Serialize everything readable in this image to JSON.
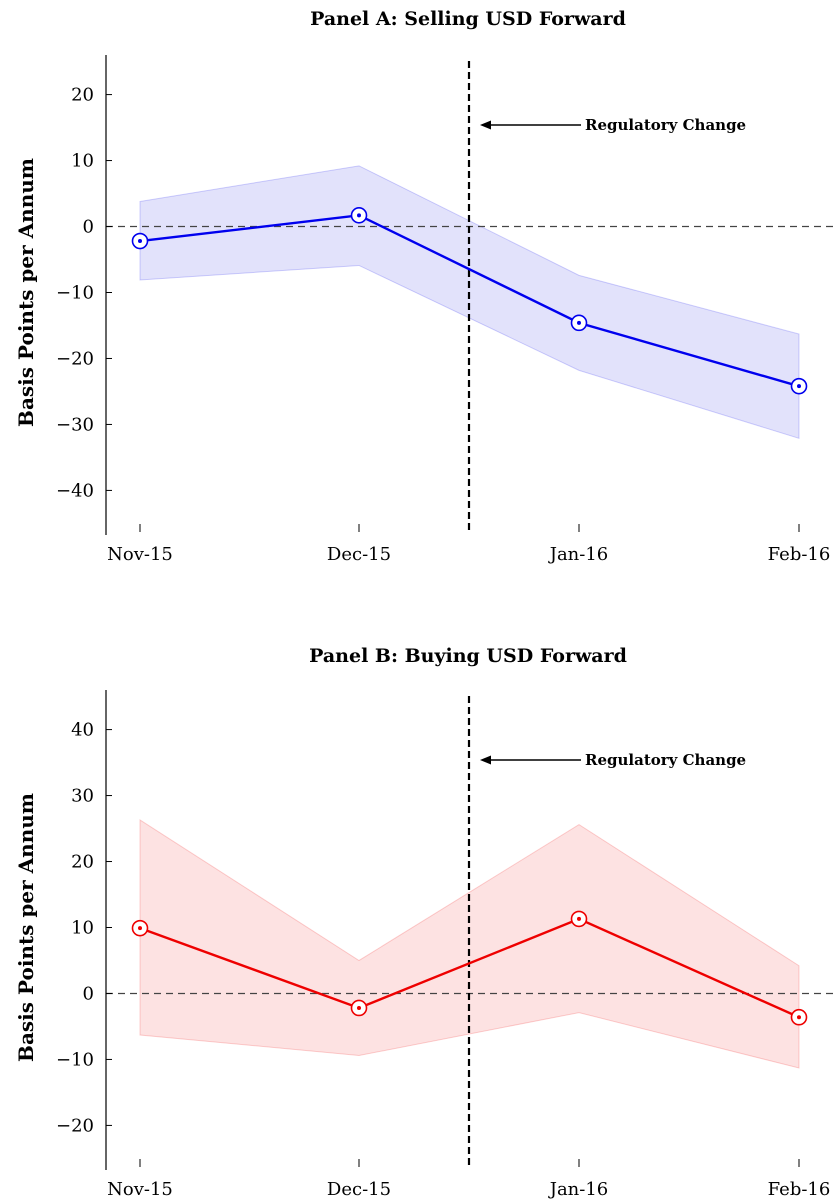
{
  "chart_data": [
    {
      "type": "line",
      "title": "Panel A: Selling USD Forward",
      "ylabel": "Basis Points per Annum",
      "xlabel": "",
      "categories": [
        "Nov-15",
        "Dec-15",
        "Jan-16",
        "Feb-16"
      ],
      "series": [
        {
          "values": [
            -2.2,
            1.7,
            -14.6,
            -24.2
          ],
          "ci_upper": [
            3.8,
            9.2,
            -7.4,
            -16.3
          ],
          "ci_lower": [
            -8.1,
            -5.9,
            -21.8,
            -32.1
          ],
          "color": "#0000ee",
          "fill": "#e2e2fb"
        }
      ],
      "ylim": [
        -46,
        26
      ],
      "yticks": [
        20,
        10,
        0,
        -10,
        -20,
        -30,
        -40
      ],
      "ytick_labels": [
        "20",
        "10",
        "0",
        "−10",
        "−20",
        "−30",
        "−40"
      ],
      "reference_line_y": 0,
      "event_line_x": 1.5,
      "annotation": "Regulatory Change"
    },
    {
      "type": "line",
      "title": "Panel B: Buying USD Forward",
      "ylabel": "Basis Points per Annum",
      "xlabel": "",
      "categories": [
        "Nov-15",
        "Dec-15",
        "Jan-16",
        "Feb-16"
      ],
      "series": [
        {
          "values": [
            9.9,
            -2.2,
            11.3,
            -3.6
          ],
          "ci_upper": [
            26.3,
            5.0,
            25.6,
            4.2
          ],
          "ci_lower": [
            -6.3,
            -9.4,
            -2.9,
            -11.3
          ],
          "color": "#ee0000",
          "fill": "#fde2e2"
        }
      ],
      "ylim": [
        -26,
        46
      ],
      "yticks": [
        40,
        30,
        20,
        10,
        0,
        -10,
        -20
      ],
      "ytick_labels": [
        "40",
        "30",
        "20",
        "10",
        "0",
        "−10",
        "−20"
      ],
      "reference_line_y": 0,
      "event_line_x": 1.5,
      "annotation": "Regulatory Change"
    }
  ]
}
